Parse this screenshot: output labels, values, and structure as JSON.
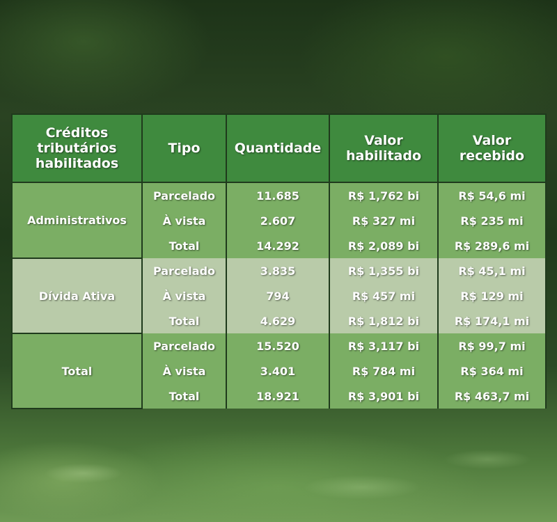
{
  "table": {
    "headers": [
      "Créditos tributários habilitados",
      "Tipo",
      "Quantidade",
      "Valor habilitado",
      "Valor recebido"
    ],
    "groups": [
      {
        "category": "Administrativos",
        "rows": [
          {
            "tipo": "Parcelado",
            "quantidade": "11.685",
            "valor_habilitado": "R$ 1,762 bi",
            "valor_recebido": "R$ 54,6 mi"
          },
          {
            "tipo": "À vista",
            "quantidade": "2.607",
            "valor_habilitado": "R$ 327 mi",
            "valor_recebido": "R$ 235 mi"
          },
          {
            "tipo": "Total",
            "quantidade": "14.292",
            "valor_habilitado": "R$ 2,089 bi",
            "valor_recebido": "R$ 289,6 mi"
          }
        ]
      },
      {
        "category": "Dívida Ativa",
        "rows": [
          {
            "tipo": "Parcelado",
            "quantidade": "3.835",
            "valor_habilitado": "R$ 1,355  bi",
            "valor_recebido": "R$ 45,1 mi"
          },
          {
            "tipo": "À vista",
            "quantidade": "794",
            "valor_habilitado": "R$ 457 mi",
            "valor_recebido": "R$ 129 mi"
          },
          {
            "tipo": "Total",
            "quantidade": "4.629",
            "valor_habilitado": "R$ 1,812 bi",
            "valor_recebido": "R$ 174,1 mi"
          }
        ]
      },
      {
        "category": "Total",
        "rows": [
          {
            "tipo": "Parcelado",
            "quantidade": "15.520",
            "valor_habilitado": "R$ 3,117 bi",
            "valor_recebido": "R$ 99,7 mi"
          },
          {
            "tipo": "À vista",
            "quantidade": "3.401",
            "valor_habilitado": "R$ 784 mi",
            "valor_recebido": "R$ 364 mi"
          },
          {
            "tipo": "Total",
            "quantidade": "18.921",
            "valor_habilitado": "R$ 3,901 bi",
            "valor_recebido": "R$ 463,7 mi"
          }
        ]
      }
    ]
  },
  "colors": {
    "header_bg": "#3f8a3e",
    "group_green": "#7bae64",
    "group_pale": "#b9cba9",
    "border": "#1f3a1c",
    "text": "#ffffff"
  }
}
